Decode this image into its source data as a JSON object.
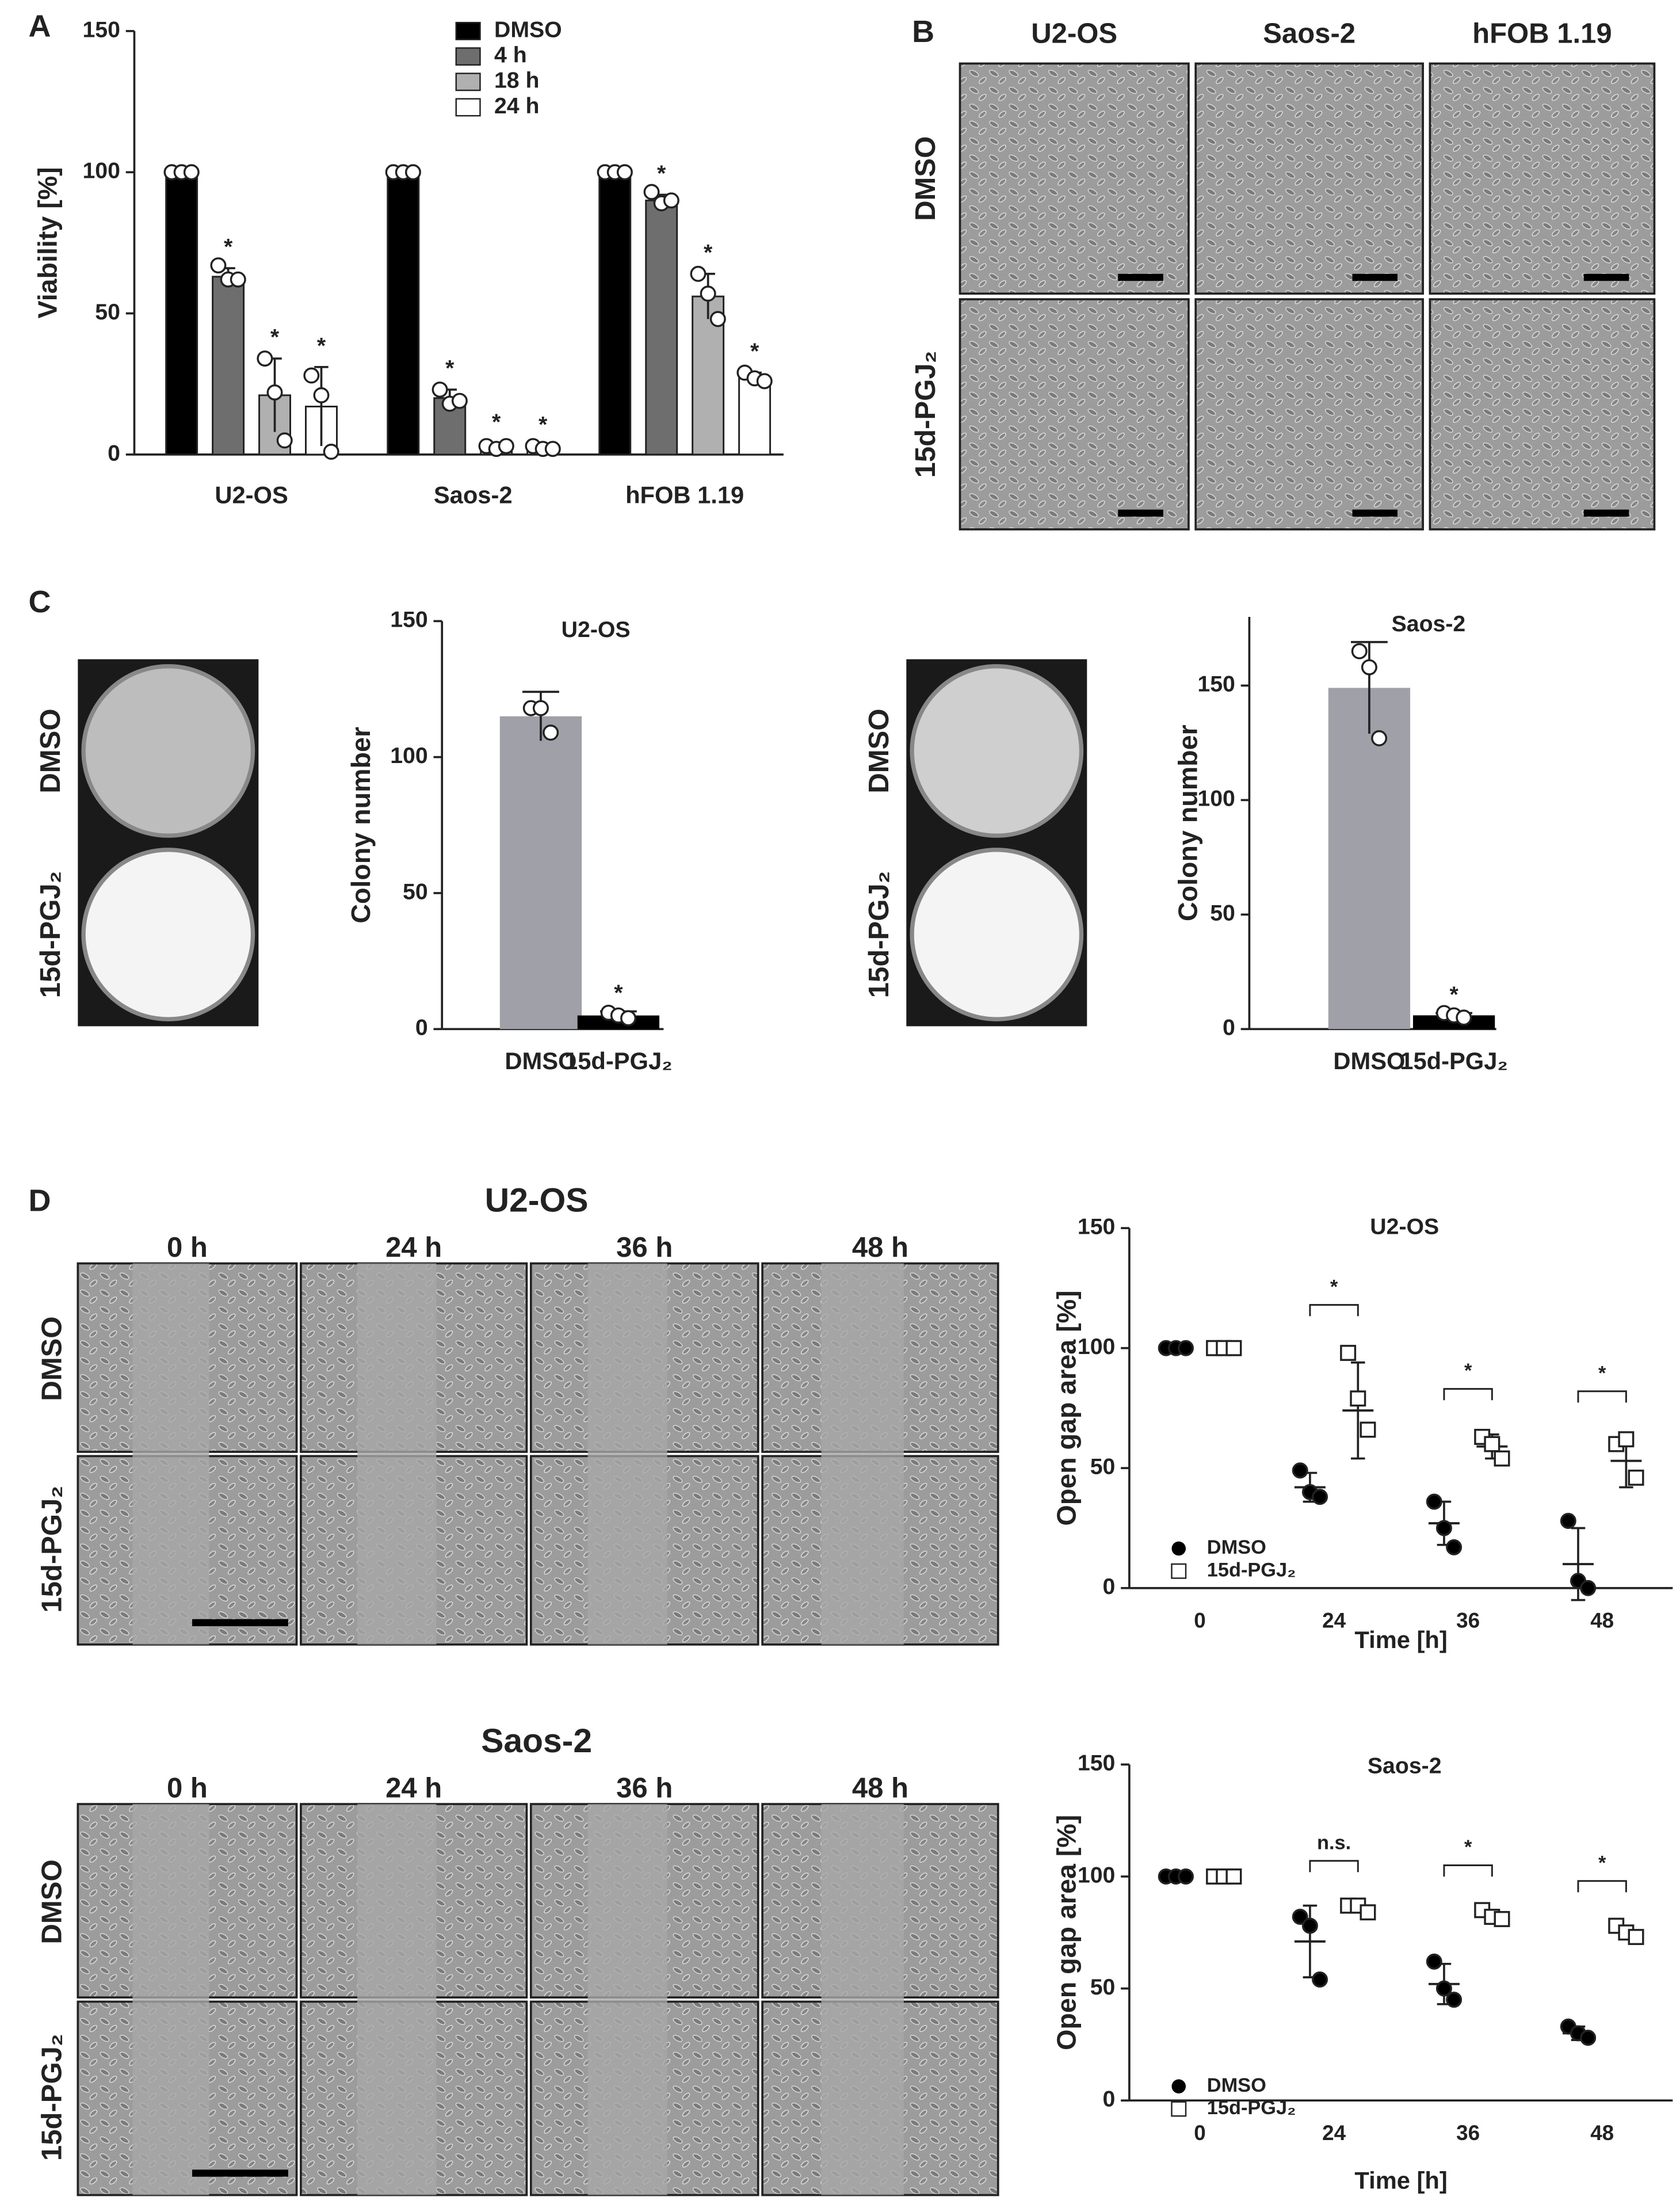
{
  "panel_labels": [
    "A",
    "B",
    "C",
    "D"
  ],
  "images": {
    "B": {
      "columns": [
        "U2-OS",
        "Saos-2",
        "hFOB 1.19"
      ],
      "rows": [
        "DMSO",
        "15d-PGJ₂"
      ]
    },
    "C": [
      {
        "rows": [
          "DMSO",
          "15d-PGJ₂"
        ]
      },
      {
        "rows": [
          "DMSO",
          "15d-PGJ₂"
        ]
      }
    ],
    "D": [
      {
        "title": "U2-OS",
        "columns": [
          "0 h",
          "24 h",
          "36 h",
          "48 h"
        ],
        "rows": [
          "DMSO",
          "15d-PGJ₂"
        ]
      },
      {
        "title": "Saos-2",
        "columns": [
          "0 h",
          "24 h",
          "36 h",
          "48 h"
        ],
        "rows": [
          "DMSO",
          "15d-PGJ₂"
        ]
      }
    ]
  },
  "chart_data": [
    {
      "type": "grouped_bar",
      "ylabel": "Viability [%]",
      "categories": [
        "U2-OS",
        "Saos-2",
        "hFOB 1.19"
      ],
      "ylim": [
        0,
        150
      ],
      "yticks": [
        0,
        50,
        100,
        150
      ],
      "series": [
        {
          "name": "DMSO",
          "color": "#000000",
          "values": [
            100,
            100,
            100
          ],
          "points": [
            [
              100,
              100,
              100
            ],
            [
              100,
              100,
              100
            ],
            [
              100,
              100,
              100
            ]
          ]
        },
        {
          "name": "4 h",
          "color": "#6e6e6e",
          "values": [
            63,
            20,
            90
          ],
          "errors": [
            3,
            3,
            2
          ],
          "points": [
            [
              67,
              62,
              62
            ],
            [
              23,
              18,
              19
            ],
            [
              93,
              89,
              90
            ]
          ],
          "sig": [
            "*",
            "*",
            "*"
          ]
        },
        {
          "name": "18 h",
          "color": "#b0b0b0",
          "values": [
            21,
            3,
            56
          ],
          "errors": [
            13,
            1,
            8
          ],
          "points": [
            [
              34,
              22,
              5
            ],
            [
              3,
              2,
              3
            ],
            [
              64,
              57,
              48
            ]
          ],
          "sig": [
            "*",
            "*",
            "*"
          ]
        },
        {
          "name": "24 h",
          "color": "#ffffff",
          "values": [
            17,
            2,
            27
          ],
          "errors": [
            14,
            1,
            2
          ],
          "points": [
            [
              28,
              21,
              1
            ],
            [
              3,
              2,
              2
            ],
            [
              29,
              27,
              26
            ]
          ],
          "sig": [
            "*",
            "*",
            "*"
          ]
        }
      ]
    },
    {
      "type": "bar",
      "title": "U2-OS",
      "ylabel": "Colony number",
      "categories": [
        "DMSO",
        "15d-PGJ₂"
      ],
      "values": [
        115,
        5
      ],
      "colors": [
        "#a0a0a8",
        "#000000"
      ],
      "errors": [
        9,
        1.5
      ],
      "points": [
        [
          118,
          118,
          109
        ],
        [
          6,
          5,
          4
        ]
      ],
      "sig": [
        null,
        "*"
      ],
      "ylim": [
        0,
        150
      ],
      "yticks": [
        0,
        50,
        100,
        150
      ]
    },
    {
      "type": "bar",
      "title": "Saos-2",
      "ylabel": "Colony number",
      "categories": [
        "DMSO",
        "15d-PGJ₂"
      ],
      "values": [
        149,
        6
      ],
      "colors": [
        "#a0a0a8",
        "#000000"
      ],
      "errors": [
        20,
        1
      ],
      "points": [
        [
          165,
          158,
          127
        ],
        [
          7,
          6,
          5
        ]
      ],
      "sig": [
        null,
        "*"
      ],
      "ylim": [
        0,
        180
      ],
      "yticks": [
        0,
        50,
        100,
        150
      ]
    },
    {
      "type": "dot",
      "title": "U2-OS",
      "xlabel": "Time [h]",
      "ylabel": "Open gap area [%]",
      "categories": [
        "0",
        "24",
        "36",
        "48"
      ],
      "ylim": [
        0,
        150
      ],
      "yticks": [
        0,
        50,
        100,
        150
      ],
      "sig": [
        null,
        "*",
        "*",
        "*"
      ],
      "series": [
        {
          "name": "DMSO",
          "marker": "circle",
          "color": "#000000",
          "values": [
            100,
            42,
            27,
            10
          ],
          "errors": [
            0,
            6,
            9,
            15
          ],
          "points": [
            [
              100,
              100,
              100
            ],
            [
              49,
              40,
              38
            ],
            [
              36,
              25,
              17
            ],
            [
              28,
              3,
              0
            ]
          ]
        },
        {
          "name": "15d-PGJ₂",
          "marker": "square",
          "color": "#000000",
          "values": [
            100,
            74,
            59,
            53
          ],
          "errors": [
            0,
            20,
            5,
            11
          ],
          "points": [
            [
              100,
              100,
              100
            ],
            [
              98,
              79,
              66
            ],
            [
              63,
              60,
              54
            ],
            [
              60,
              62,
              46
            ]
          ]
        }
      ]
    },
    {
      "type": "dot",
      "title": "Saos-2",
      "xlabel": "Time [h]",
      "ylabel": "Open gap area [%]",
      "categories": [
        "0",
        "24",
        "36",
        "48"
      ],
      "ylim": [
        0,
        150
      ],
      "yticks": [
        0,
        50,
        100,
        150
      ],
      "sig": [
        null,
        "n.s.",
        "*",
        "*"
      ],
      "series": [
        {
          "name": "DMSO",
          "marker": "circle",
          "color": "#000000",
          "values": [
            100,
            71,
            52,
            30
          ],
          "errors": [
            0,
            16,
            9,
            3
          ],
          "points": [
            [
              100,
              100,
              100
            ],
            [
              82,
              78,
              54
            ],
            [
              62,
              50,
              45
            ],
            [
              33,
              30,
              28
            ]
          ]
        },
        {
          "name": "15d-PGJ₂",
          "marker": "square",
          "color": "#000000",
          "values": [
            100,
            86,
            82,
            75
          ],
          "errors": [
            0,
            2,
            2,
            2
          ],
          "points": [
            [
              100,
              100,
              100
            ],
            [
              87,
              87,
              84
            ],
            [
              85,
              82,
              81
            ],
            [
              78,
              75,
              73
            ]
          ]
        }
      ]
    }
  ]
}
